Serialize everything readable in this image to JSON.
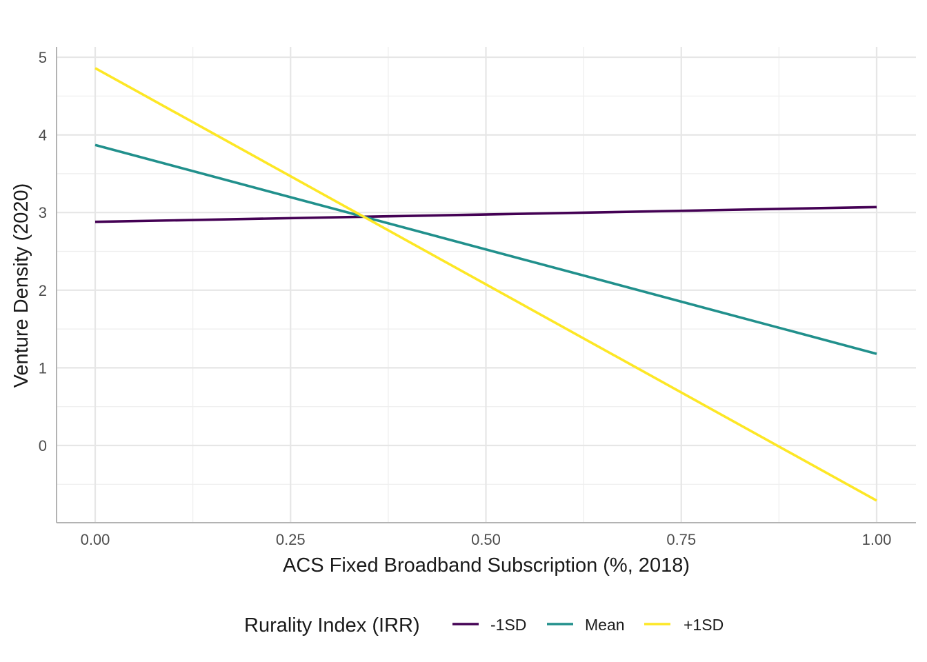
{
  "chart_data": {
    "type": "line",
    "xlabel": "ACS Fixed Broadband Subscription (%, 2018)",
    "ylabel": "Venture Density (2020)",
    "xlim": [
      -0.05,
      1.05
    ],
    "ylim": [
      -0.98,
      5.12
    ],
    "x_ticks": [
      0.0,
      0.25,
      0.5,
      0.75,
      1.0
    ],
    "x_tick_labels": [
      "0.00",
      "0.25",
      "0.50",
      "0.75",
      "1.00"
    ],
    "y_ticks": [
      0,
      1,
      2,
      3,
      4,
      5
    ],
    "y_tick_labels": [
      "0",
      "1",
      "2",
      "3",
      "4",
      "5"
    ],
    "grid": true,
    "legend": {
      "title": "Rurality Index (IRR)",
      "position": "bottom"
    },
    "series": [
      {
        "name": "-1SD",
        "color": "#440154",
        "x": [
          0,
          1
        ],
        "y": [
          2.88,
          3.07
        ]
      },
      {
        "name": "Mean",
        "color": "#21908C",
        "x": [
          0,
          1
        ],
        "y": [
          3.87,
          1.18
        ]
      },
      {
        "name": "+1SD",
        "color": "#FDE725",
        "x": [
          0,
          1
        ],
        "y": [
          4.86,
          -0.71
        ]
      }
    ]
  }
}
